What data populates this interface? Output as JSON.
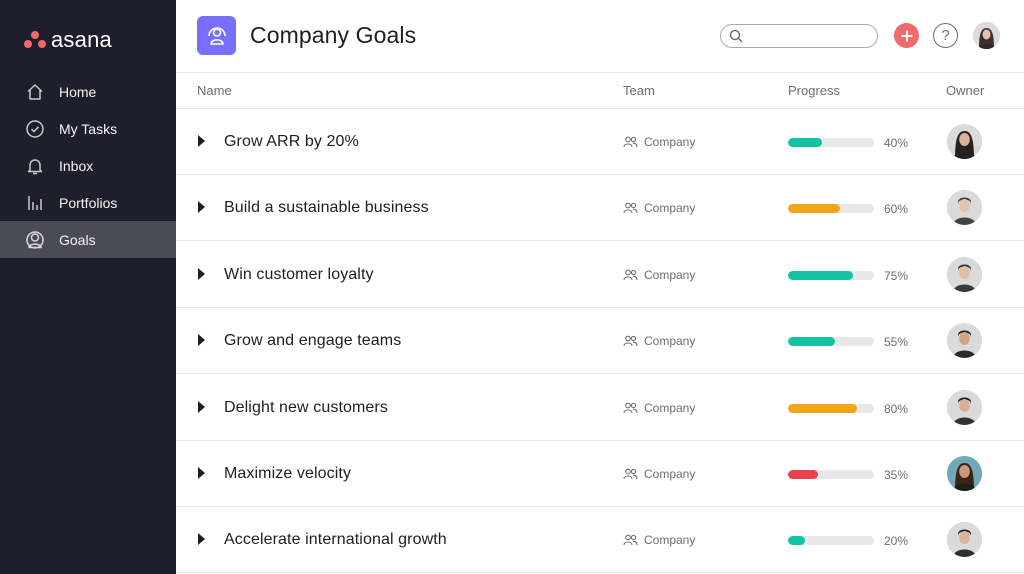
{
  "app": {
    "logo_text": "asana",
    "brand_color": "#f06a6a"
  },
  "sidebar": {
    "items": [
      {
        "label": "Home",
        "icon": "home-icon",
        "active": false
      },
      {
        "label": "My Tasks",
        "icon": "check-circle-icon",
        "active": false
      },
      {
        "label": "Inbox",
        "icon": "bell-icon",
        "active": false
      },
      {
        "label": "Portfolios",
        "icon": "bar-chart-icon",
        "active": false
      },
      {
        "label": "Goals",
        "icon": "person-icon",
        "active": true
      }
    ]
  },
  "header": {
    "title": "Company Goals",
    "badge_icon": "goal-person-icon",
    "badge_color": "#796eff",
    "search": {
      "placeholder": "",
      "value": ""
    },
    "add_icon": "plus-icon",
    "help_icon": "question-icon"
  },
  "table": {
    "columns": [
      "Name",
      "Team",
      "Progress",
      "Owner"
    ],
    "rows": [
      {
        "name": "Grow ARR by 20%",
        "team": "Company",
        "progress": 40,
        "progress_label": "40%",
        "bar_color": "#13c1a3"
      },
      {
        "name": "Build a sustainable business",
        "team": "Company",
        "progress": 60,
        "progress_label": "60%",
        "bar_color": "#f2a516"
      },
      {
        "name": "Win customer loyalty",
        "team": "Company",
        "progress": 75,
        "progress_label": "75%",
        "bar_color": "#13c1a3"
      },
      {
        "name": "Grow and engage teams",
        "team": "Company",
        "progress": 55,
        "progress_label": "55%",
        "bar_color": "#13c1a3"
      },
      {
        "name": "Delight new customers",
        "team": "Company",
        "progress": 80,
        "progress_label": "80%",
        "bar_color": "#f2a516"
      },
      {
        "name": "Maximize velocity",
        "team": "Company",
        "progress": 35,
        "progress_label": "35%",
        "bar_color": "#e8434c"
      },
      {
        "name": "Accelerate international growth",
        "team": "Company",
        "progress": 20,
        "progress_label": "20%",
        "bar_color": "#13c1a3"
      }
    ]
  }
}
